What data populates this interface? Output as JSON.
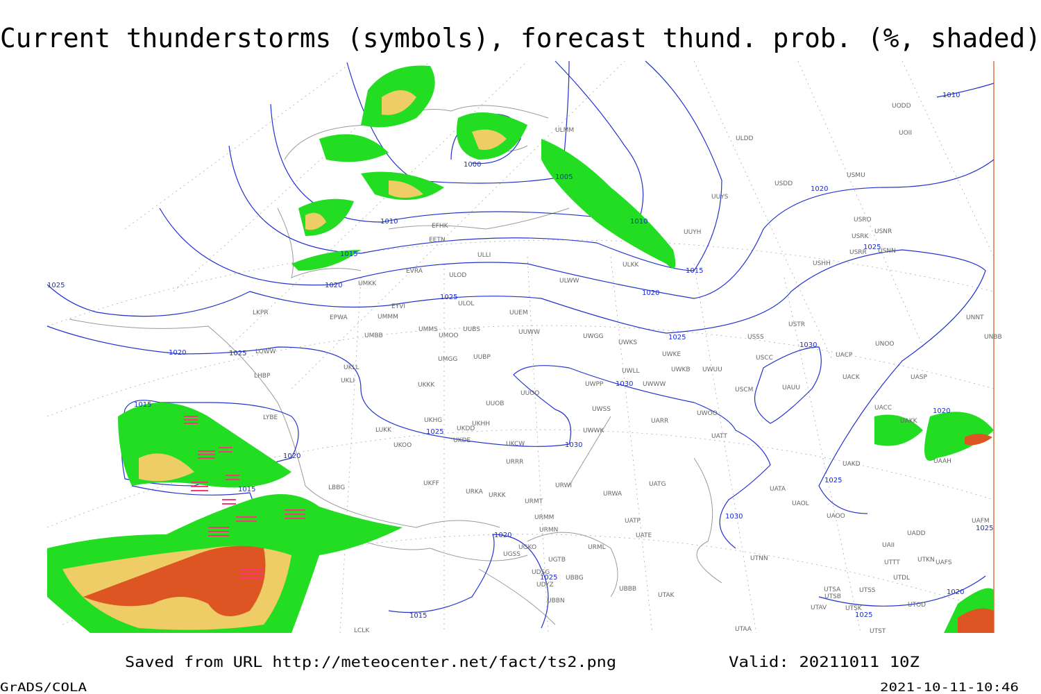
{
  "title": "Current thunderstorms (symbols), forecast thund. prob. (%, shaded)",
  "footer": {
    "saved": "Saved from URL http://meteocenter.net/fact/ts2.png",
    "valid": "Valid: 20211011 10Z",
    "software": "GrADS/COLA",
    "timestamp": "2021-10-11-10:46"
  },
  "map": {
    "isobar_labels": [
      1010,
      1000,
      1005,
      1010,
      1010,
      1020,
      1015,
      1025,
      1015,
      1020,
      1020,
      1025,
      1025,
      1025,
      1030,
      1020,
      1025,
      1030,
      1015,
      1020,
      1025,
      1030,
      1020,
      1015,
      1025,
      1030,
      1020,
      1025,
      1025,
      1020,
      1015,
      1025
    ],
    "stations": [
      "ULMM",
      "ULDD",
      "UUYS",
      "USDD",
      "USMU",
      "UODD",
      "UOII",
      "USRO",
      "USRK",
      "USNR",
      "USRR",
      "USNN",
      "USHH",
      "UUYH",
      "EFHK",
      "EETN",
      "ULLI",
      "ULKK",
      "ULOD",
      "EVRA",
      "UMKK",
      "ULWW",
      "EYVI",
      "ULOL",
      "UUEM",
      "EPWA",
      "UMMM",
      "LKPR",
      "UMMS",
      "UMOO",
      "UUBS",
      "UUWW",
      "UWGG",
      "UWKS",
      "UMBB",
      "UWKE",
      "UWKB",
      "UWUU",
      "USSS",
      "USTR",
      "UNOO",
      "UNBB",
      "UNNT",
      "LOWW",
      "UMGG",
      "UUBP",
      "UKLL",
      "UKLI",
      "LHBP",
      "UWLL",
      "UWWW",
      "USCC",
      "UACP",
      "UACK",
      "UASP",
      "UKKK",
      "UWPP",
      "UUOO",
      "USCM",
      "UAUU",
      "UUOB",
      "UWSS",
      "UACC",
      "UAKK",
      "LYBE",
      "UKHG",
      "UKDD",
      "UKHH",
      "UARR",
      "UWOO",
      "UATT",
      "UKDE",
      "UWWK",
      "UKCW",
      "UKOO",
      "LUKK",
      "URRR",
      "UAKD",
      "UAAH",
      "UKFF",
      "URWI",
      "UATG",
      "LBBG",
      "URKA",
      "URKK",
      "URWA",
      "UATA",
      "UAOL",
      "UAOO",
      "URMT",
      "URMM",
      "UAFM",
      "URMN",
      "UATE",
      "UATP",
      "UADD",
      "UAII",
      "UGKO",
      "URML",
      "UGTB",
      "UGSS",
      "UTNN",
      "UTTT",
      "UTKN",
      "UAFS",
      "UDSG",
      "UBBG",
      "UTDL",
      "UBBB",
      "UTAK",
      "UTSA",
      "UTSS",
      "UTSB",
      "UDYZ",
      "UBBN",
      "UTAV",
      "UTSK",
      "UTOD",
      "UTAA",
      "UTST",
      "LCLK"
    ]
  }
}
